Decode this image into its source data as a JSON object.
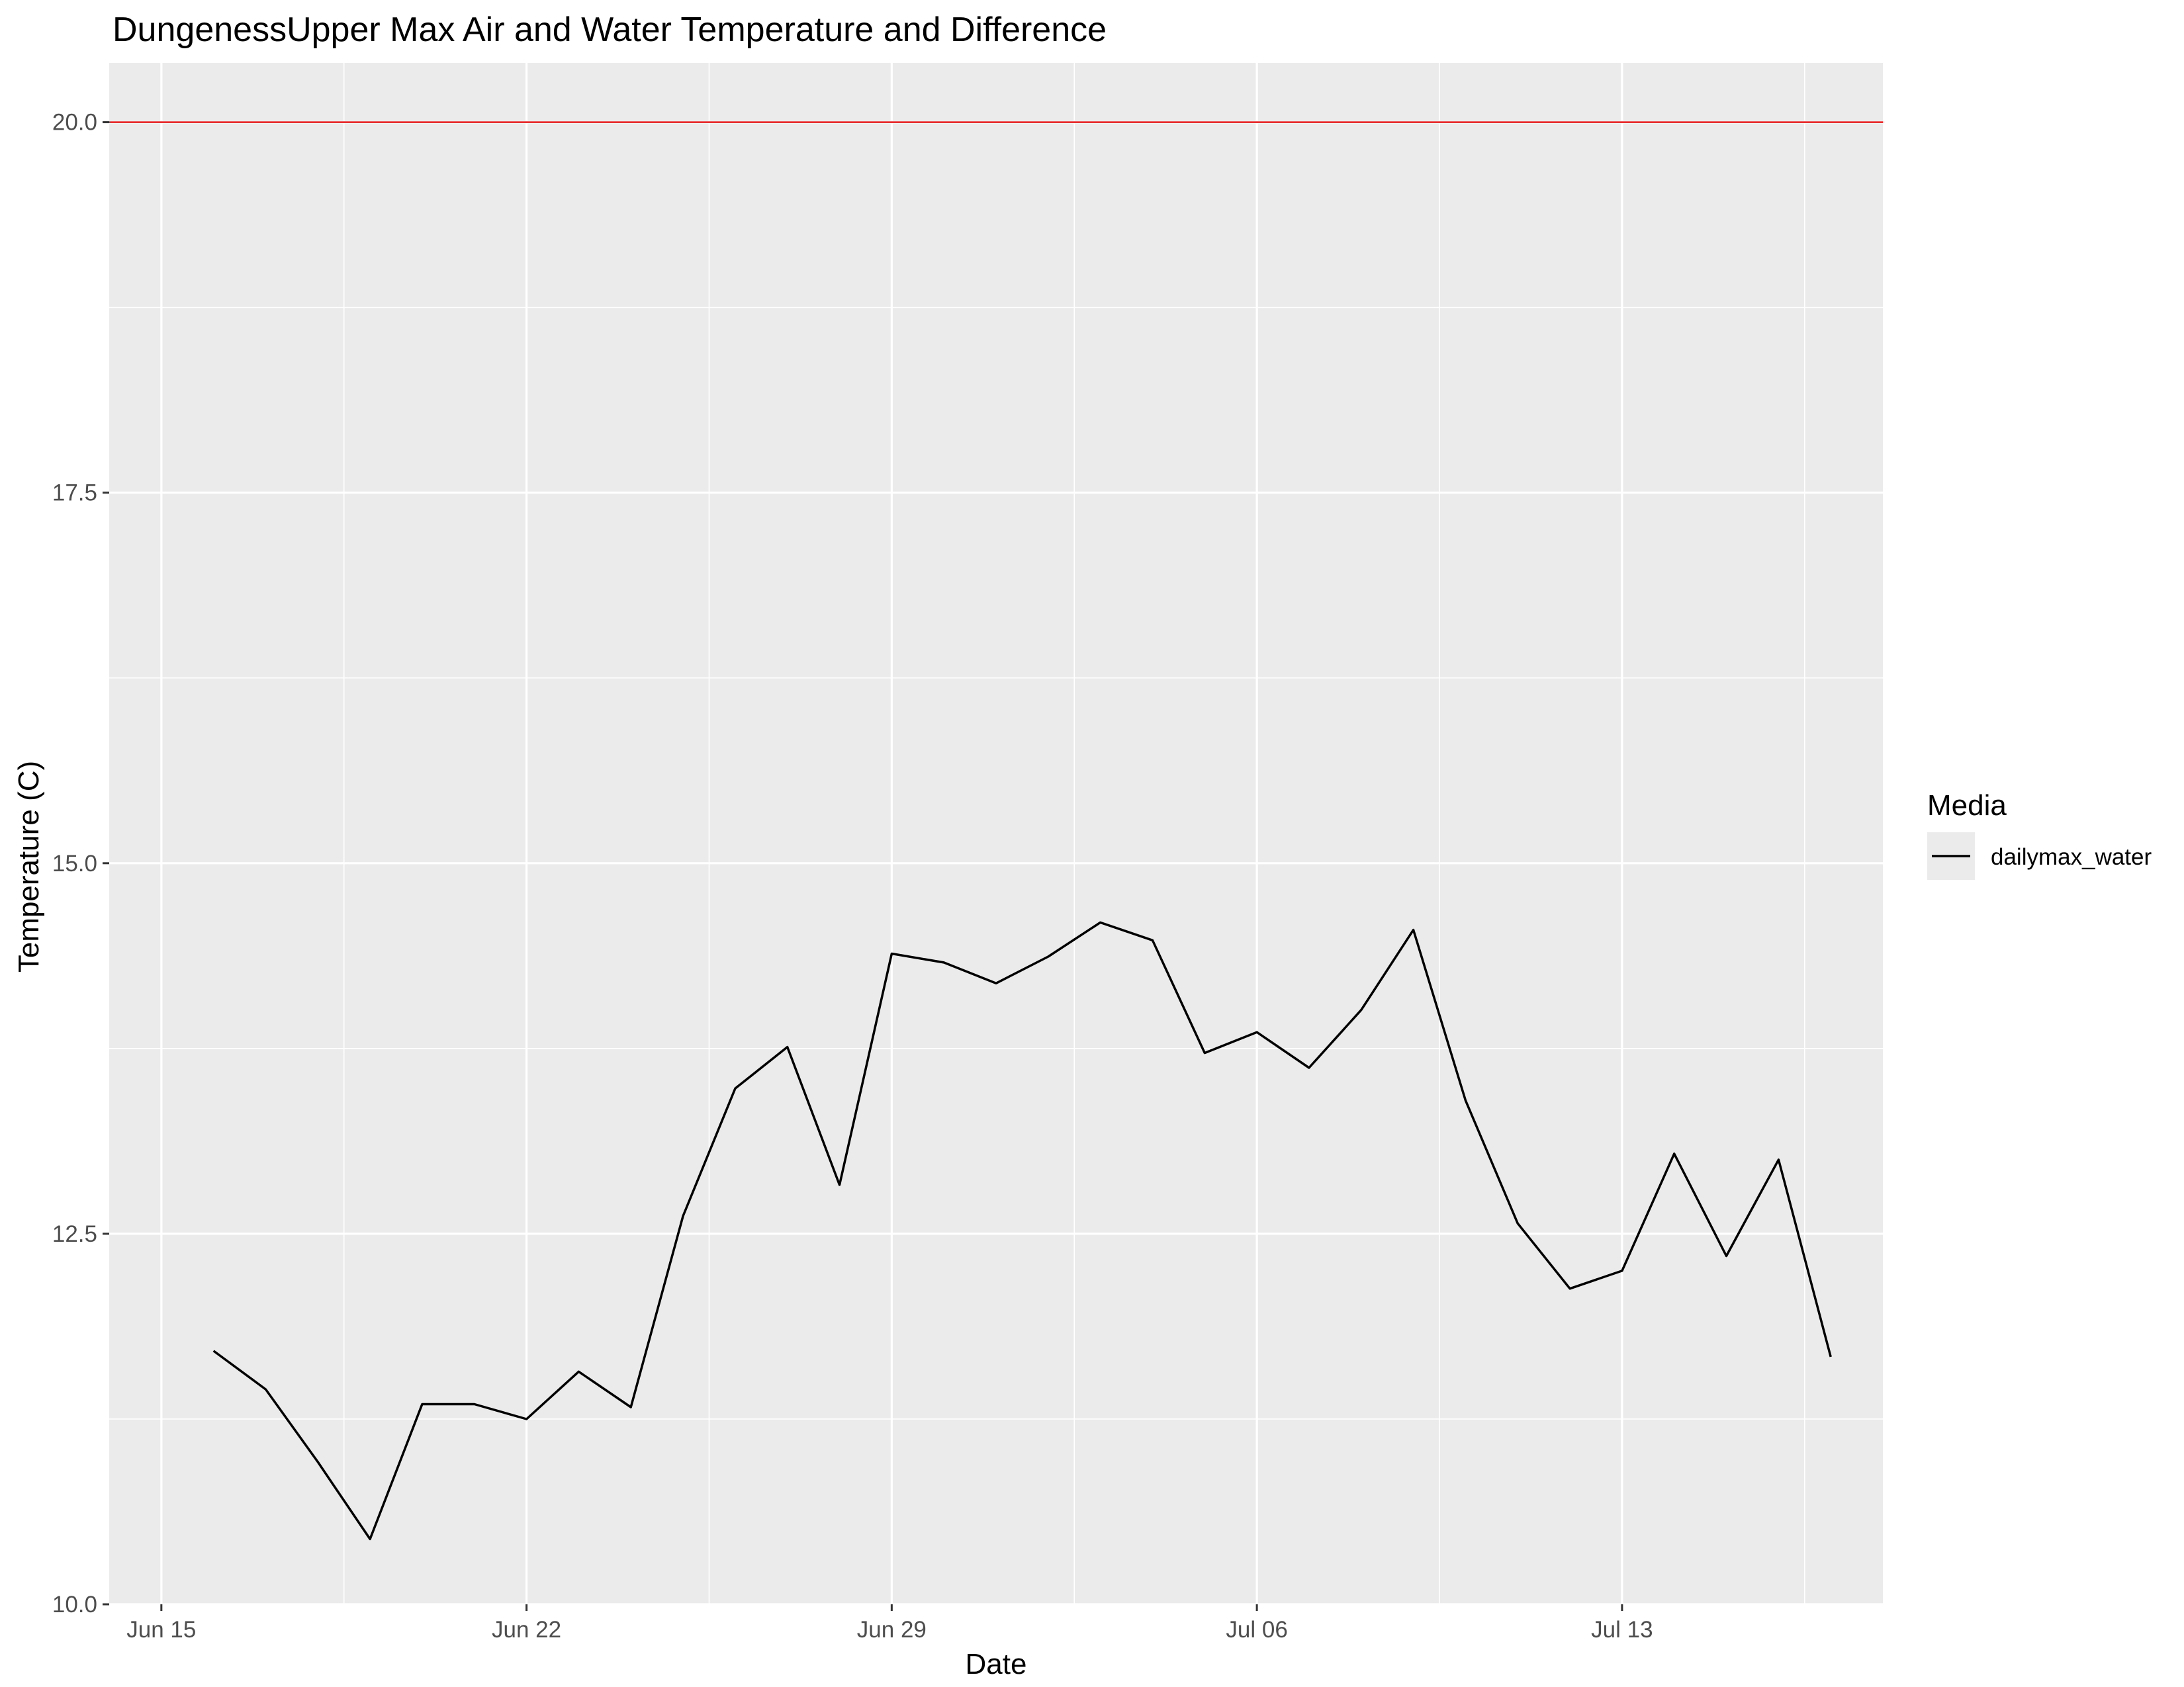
{
  "chart_data": {
    "type": "line",
    "title": "DungenessUpper Max Air and Water Temperature and Difference",
    "xlabel": "Date",
    "ylabel": "Temperature (C)",
    "x_type": "date",
    "xlim": [
      "2024-06-14",
      "2024-07-18"
    ],
    "ylim": [
      10.0,
      20.4
    ],
    "x_ticks": [
      {
        "date": "2024-06-15",
        "label": "Jun 15"
      },
      {
        "date": "2024-06-22",
        "label": "Jun 22"
      },
      {
        "date": "2024-06-29",
        "label": "Jun 29"
      },
      {
        "date": "2024-07-06",
        "label": "Jul 06"
      },
      {
        "date": "2024-07-13",
        "label": "Jul 13"
      }
    ],
    "x_minor_ticks": [
      "2024-06-18T12:00",
      "2024-06-25T12:00",
      "2024-07-02T12:00",
      "2024-07-09T12:00",
      "2024-07-16T12:00"
    ],
    "y_ticks": [
      {
        "value": 10.0,
        "label": "10.0"
      },
      {
        "value": 12.5,
        "label": "12.5"
      },
      {
        "value": 15.0,
        "label": "15.0"
      },
      {
        "value": 17.5,
        "label": "17.5"
      },
      {
        "value": 20.0,
        "label": "20.0"
      }
    ],
    "y_minor_ticks": [
      11.25,
      13.75,
      16.25,
      18.75
    ],
    "grid": true,
    "reference_line": {
      "y": 20.0,
      "color": "#e41a1c"
    },
    "legend": {
      "title": "Media",
      "placement": "right"
    },
    "series": [
      {
        "name": "dailymax_water",
        "color": "#000000",
        "x": [
          "2024-06-16",
          "2024-06-17",
          "2024-06-18",
          "2024-06-19",
          "2024-06-20",
          "2024-06-21",
          "2024-06-22",
          "2024-06-23",
          "2024-06-24",
          "2024-06-25",
          "2024-06-26",
          "2024-06-27",
          "2024-06-28",
          "2024-06-29",
          "2024-06-30",
          "2024-07-01",
          "2024-07-02",
          "2024-07-03",
          "2024-07-04",
          "2024-07-05",
          "2024-07-06",
          "2024-07-07",
          "2024-07-08",
          "2024-07-09",
          "2024-07-10",
          "2024-07-11",
          "2024-07-12",
          "2024-07-13",
          "2024-07-14",
          "2024-07-15",
          "2024-07-16",
          "2024-07-17"
        ],
        "y": [
          11.71,
          11.45,
          10.96,
          10.44,
          11.35,
          11.35,
          11.25,
          11.57,
          11.33,
          12.62,
          13.48,
          13.76,
          12.83,
          14.39,
          14.33,
          14.19,
          14.37,
          14.6,
          14.48,
          13.72,
          13.86,
          13.62,
          14.01,
          14.55,
          13.4,
          12.57,
          12.13,
          12.25,
          13.04,
          12.35,
          13.0,
          11.67
        ]
      }
    ]
  }
}
